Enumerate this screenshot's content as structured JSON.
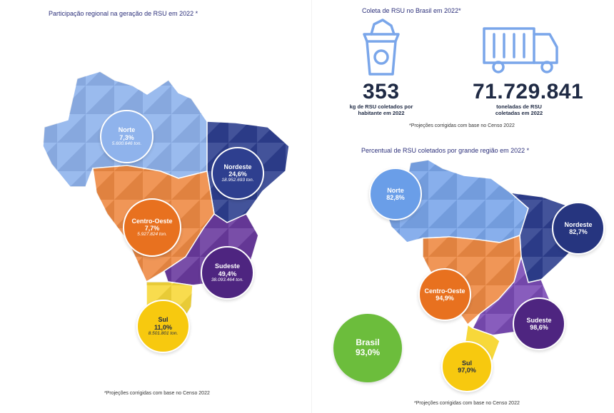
{
  "left": {
    "title": "Participação regional na geração de RSU em 2022 *",
    "footnote": "*Projeções corrigidas com base no Censo 2022",
    "regions": [
      {
        "name": "Norte",
        "pct": "7,3%",
        "tons": "5.600.646 ton.",
        "color": "#8fb3ec"
      },
      {
        "name": "Nordeste",
        "pct": "24,6%",
        "tons": "18.952.693 ton.",
        "color": "#2e3f8f"
      },
      {
        "name": "Centro-Oeste",
        "pct": "7,7%",
        "tons": "5.927.824 ton.",
        "color": "#ee7a2b"
      },
      {
        "name": "Sudeste",
        "pct": "49,4%",
        "tons": "38.093.464 ton.",
        "color": "#5b2d8c"
      },
      {
        "name": "Sul",
        "pct": "11,0%",
        "tons": "8.501.801 ton.",
        "color": "#f7d21a"
      }
    ]
  },
  "collection": {
    "title": "Coleta de RSU no Brasil em 2022*",
    "per_capita": {
      "value": "353",
      "label": "kg de RSU coletados por habitante em 2022",
      "icon": "trash-bin-icon"
    },
    "total": {
      "value": "71.729.841",
      "label": "toneladas de RSU coletadas em 2022",
      "icon": "garbage-truck-icon"
    },
    "footnote": "*Projeções corrigidas com base no Censo 2022"
  },
  "right": {
    "title": "Percentual de RSU coletados por grande região em 2022 *",
    "footnote": "*Projeções corrigidas com base no Censo 2022",
    "regions": [
      {
        "name": "Norte",
        "pct": "82,8%",
        "color": "#7aa6ea"
      },
      {
        "name": "Nordeste",
        "pct": "82,7%",
        "color": "#2e3f8f"
      },
      {
        "name": "Centro-Oeste",
        "pct": "94,9%",
        "color": "#ee7a2b"
      },
      {
        "name": "Sudeste",
        "pct": "98,6%",
        "color": "#5b2d8c"
      },
      {
        "name": "Sul",
        "pct": "97,0%",
        "color": "#f7d21a"
      },
      {
        "name": "Brasil",
        "pct": "93,0%",
        "color": "#6cbd3c"
      }
    ]
  }
}
